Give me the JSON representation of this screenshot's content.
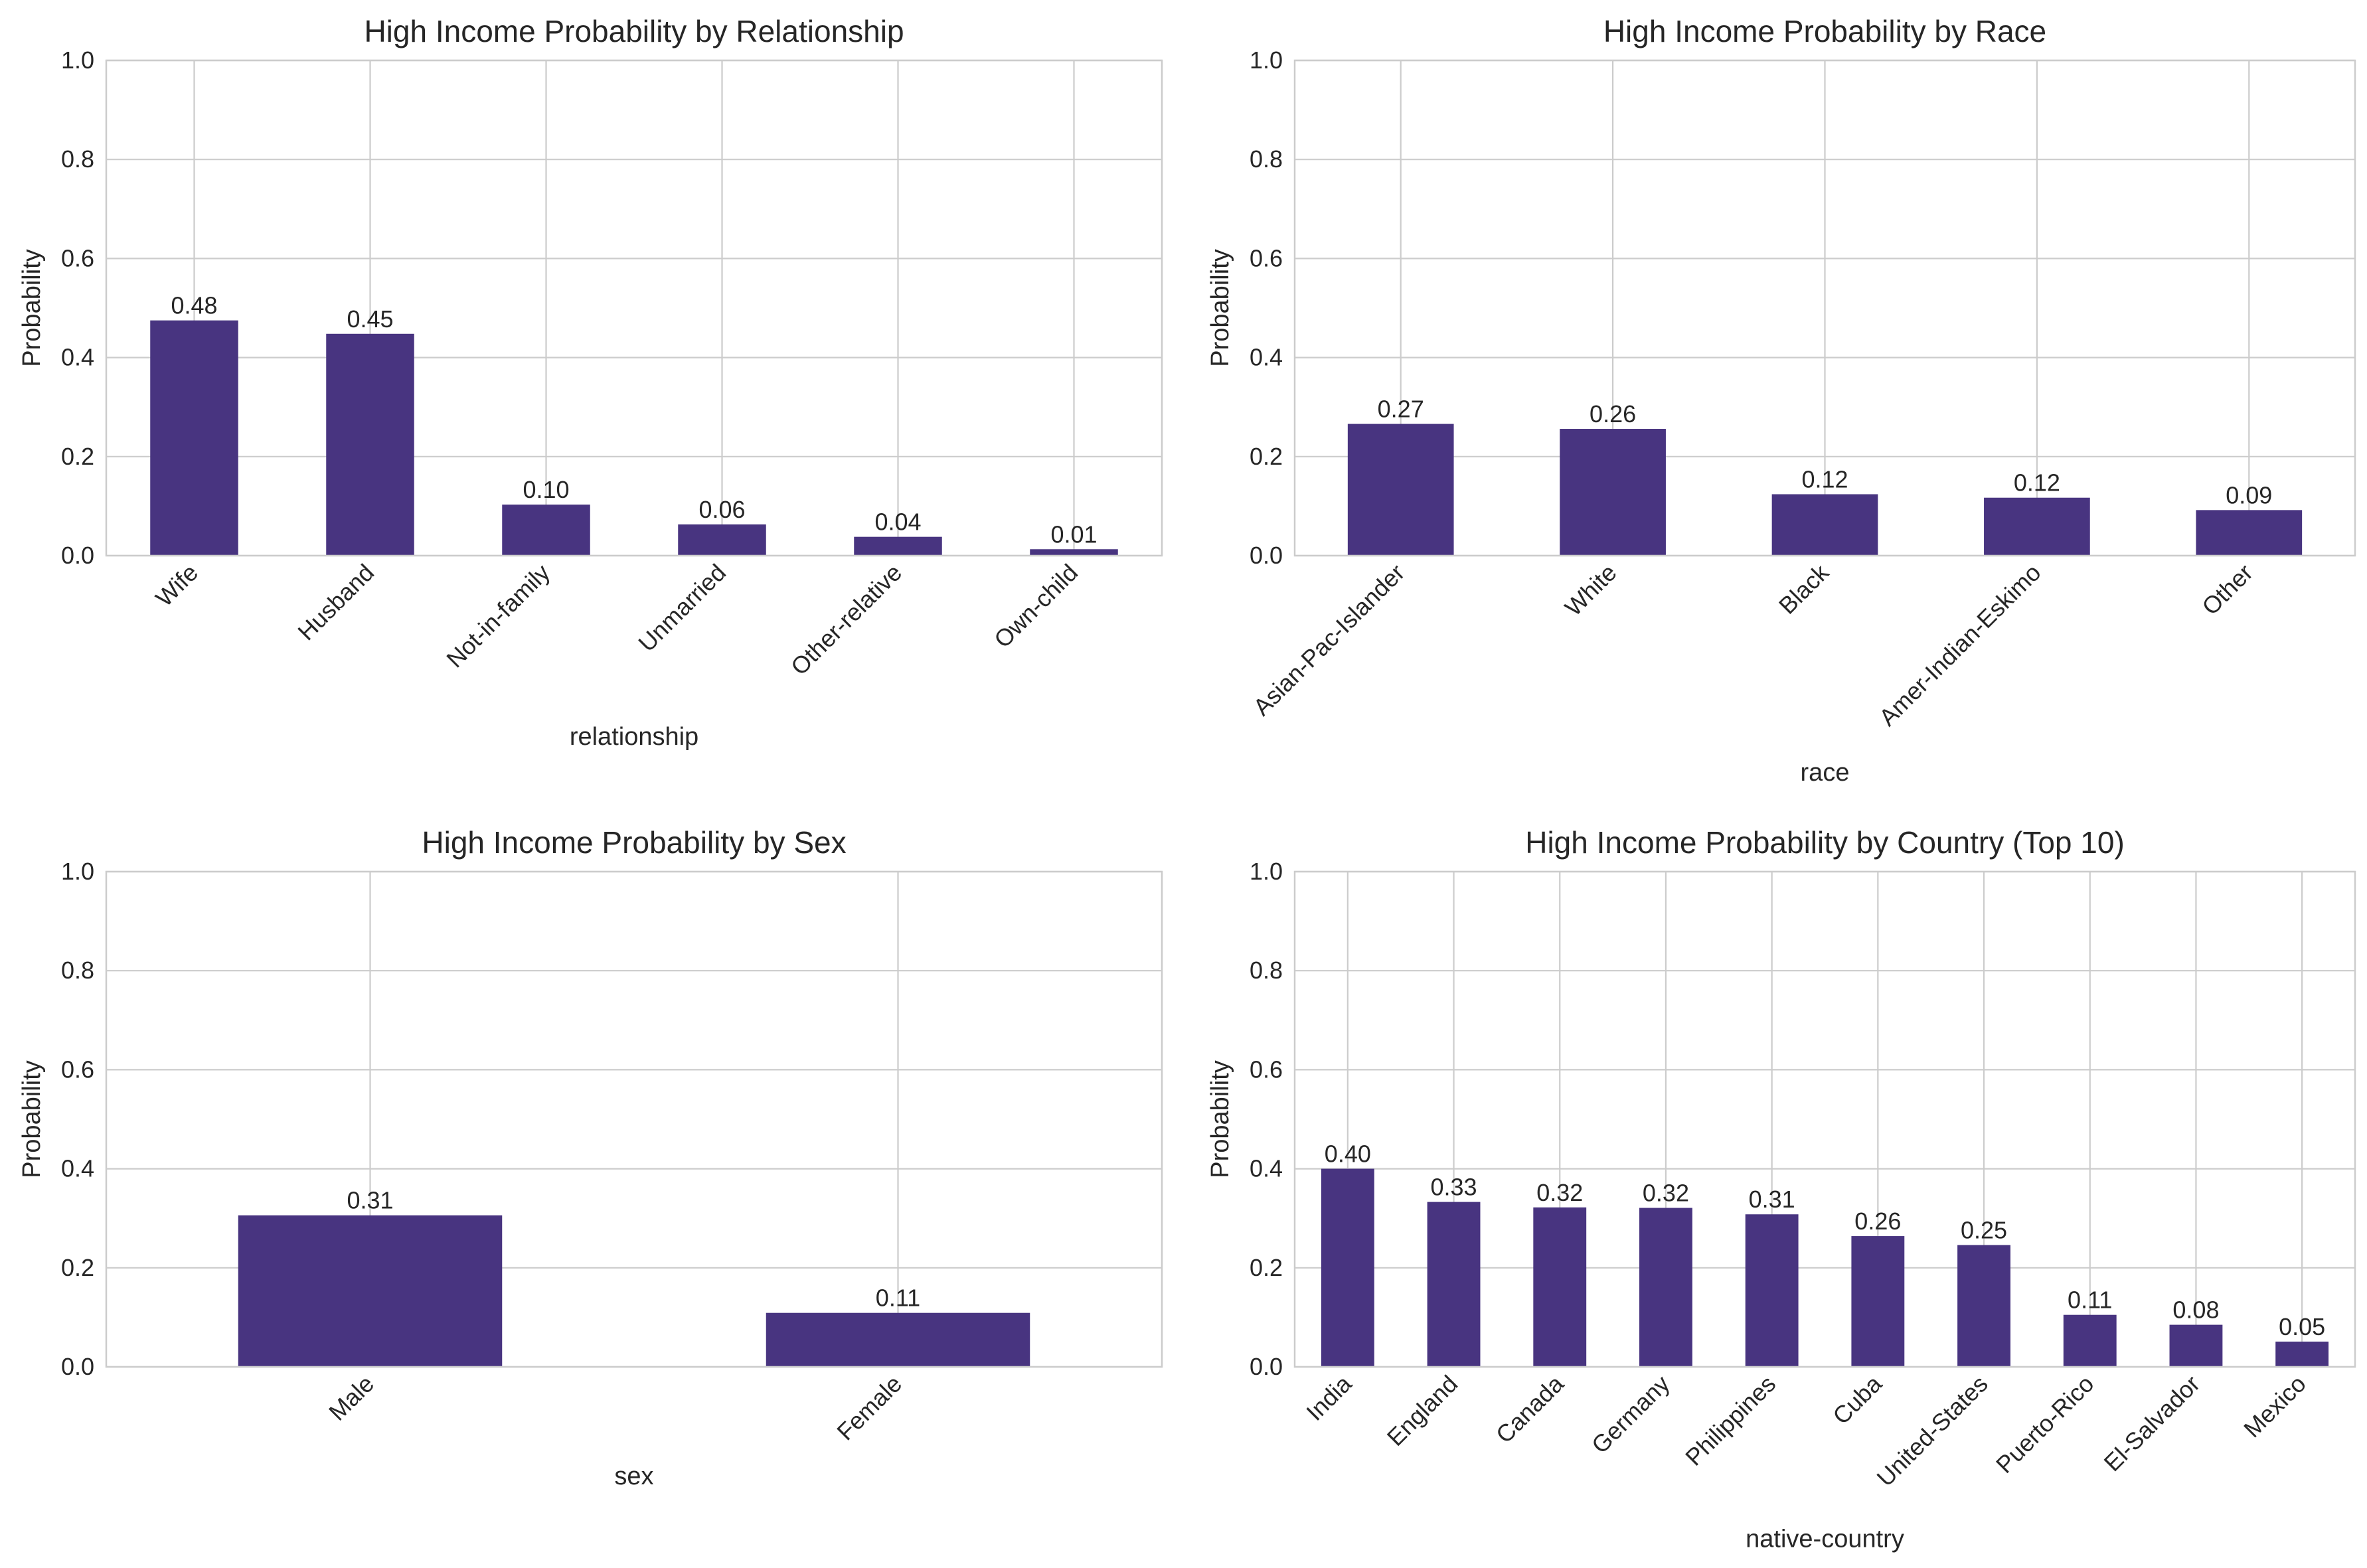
{
  "figure": {
    "bar_color": "#483480",
    "grid_color": "#cccccc",
    "text_color": "#262626"
  },
  "chart_data": [
    {
      "type": "bar",
      "title": "High Income Probability by Relationship",
      "xlabel": "relationship",
      "ylabel": "Probability",
      "ylim": [
        0,
        1
      ],
      "yticks": [
        "0.0",
        "0.2",
        "0.4",
        "0.6",
        "0.8",
        "1.0"
      ],
      "grid": true,
      "categories": [
        "Wife",
        "Husband",
        "Not-in-family",
        "Unmarried",
        "Other-relative",
        "Own-child"
      ],
      "values": [
        0.475,
        0.448,
        0.103,
        0.063,
        0.038,
        0.013
      ],
      "labels": [
        "0.48",
        "0.45",
        "0.10",
        "0.06",
        "0.04",
        "0.01"
      ]
    },
    {
      "type": "bar",
      "title": "High Income Probability by Race",
      "xlabel": "race",
      "ylabel": "Probability",
      "ylim": [
        0,
        1
      ],
      "yticks": [
        "0.0",
        "0.2",
        "0.4",
        "0.6",
        "0.8",
        "1.0"
      ],
      "grid": true,
      "categories": [
        "Asian-Pac-Islander",
        "White",
        "Black",
        "Amer-Indian-Eskimo",
        "Other"
      ],
      "values": [
        0.266,
        0.256,
        0.124,
        0.117,
        0.092
      ],
      "labels": [
        "0.27",
        "0.26",
        "0.12",
        "0.12",
        "0.09"
      ]
    },
    {
      "type": "bar",
      "title": "High Income Probability by Sex",
      "xlabel": "sex",
      "ylabel": "Probability",
      "ylim": [
        0,
        1
      ],
      "yticks": [
        "0.0",
        "0.2",
        "0.4",
        "0.6",
        "0.8",
        "1.0"
      ],
      "grid": true,
      "categories": [
        "Male",
        "Female"
      ],
      "values": [
        0.306,
        0.109
      ],
      "labels": [
        "0.31",
        "0.11"
      ]
    },
    {
      "type": "bar",
      "title": "High Income Probability by Country (Top 10)",
      "xlabel": "native-country",
      "ylabel": "Probability",
      "ylim": [
        0,
        1
      ],
      "yticks": [
        "0.0",
        "0.2",
        "0.4",
        "0.6",
        "0.8",
        "1.0"
      ],
      "grid": true,
      "categories": [
        "India",
        "England",
        "Canada",
        "Germany",
        "Philippines",
        "Cuba",
        "United-States",
        "Puerto-Rico",
        "El-Salvador",
        "Mexico"
      ],
      "values": [
        0.4,
        0.333,
        0.322,
        0.321,
        0.308,
        0.264,
        0.246,
        0.105,
        0.085,
        0.051
      ],
      "labels": [
        "0.40",
        "0.33",
        "0.32",
        "0.32",
        "0.31",
        "0.26",
        "0.25",
        "0.11",
        "0.08",
        "0.05"
      ]
    }
  ]
}
